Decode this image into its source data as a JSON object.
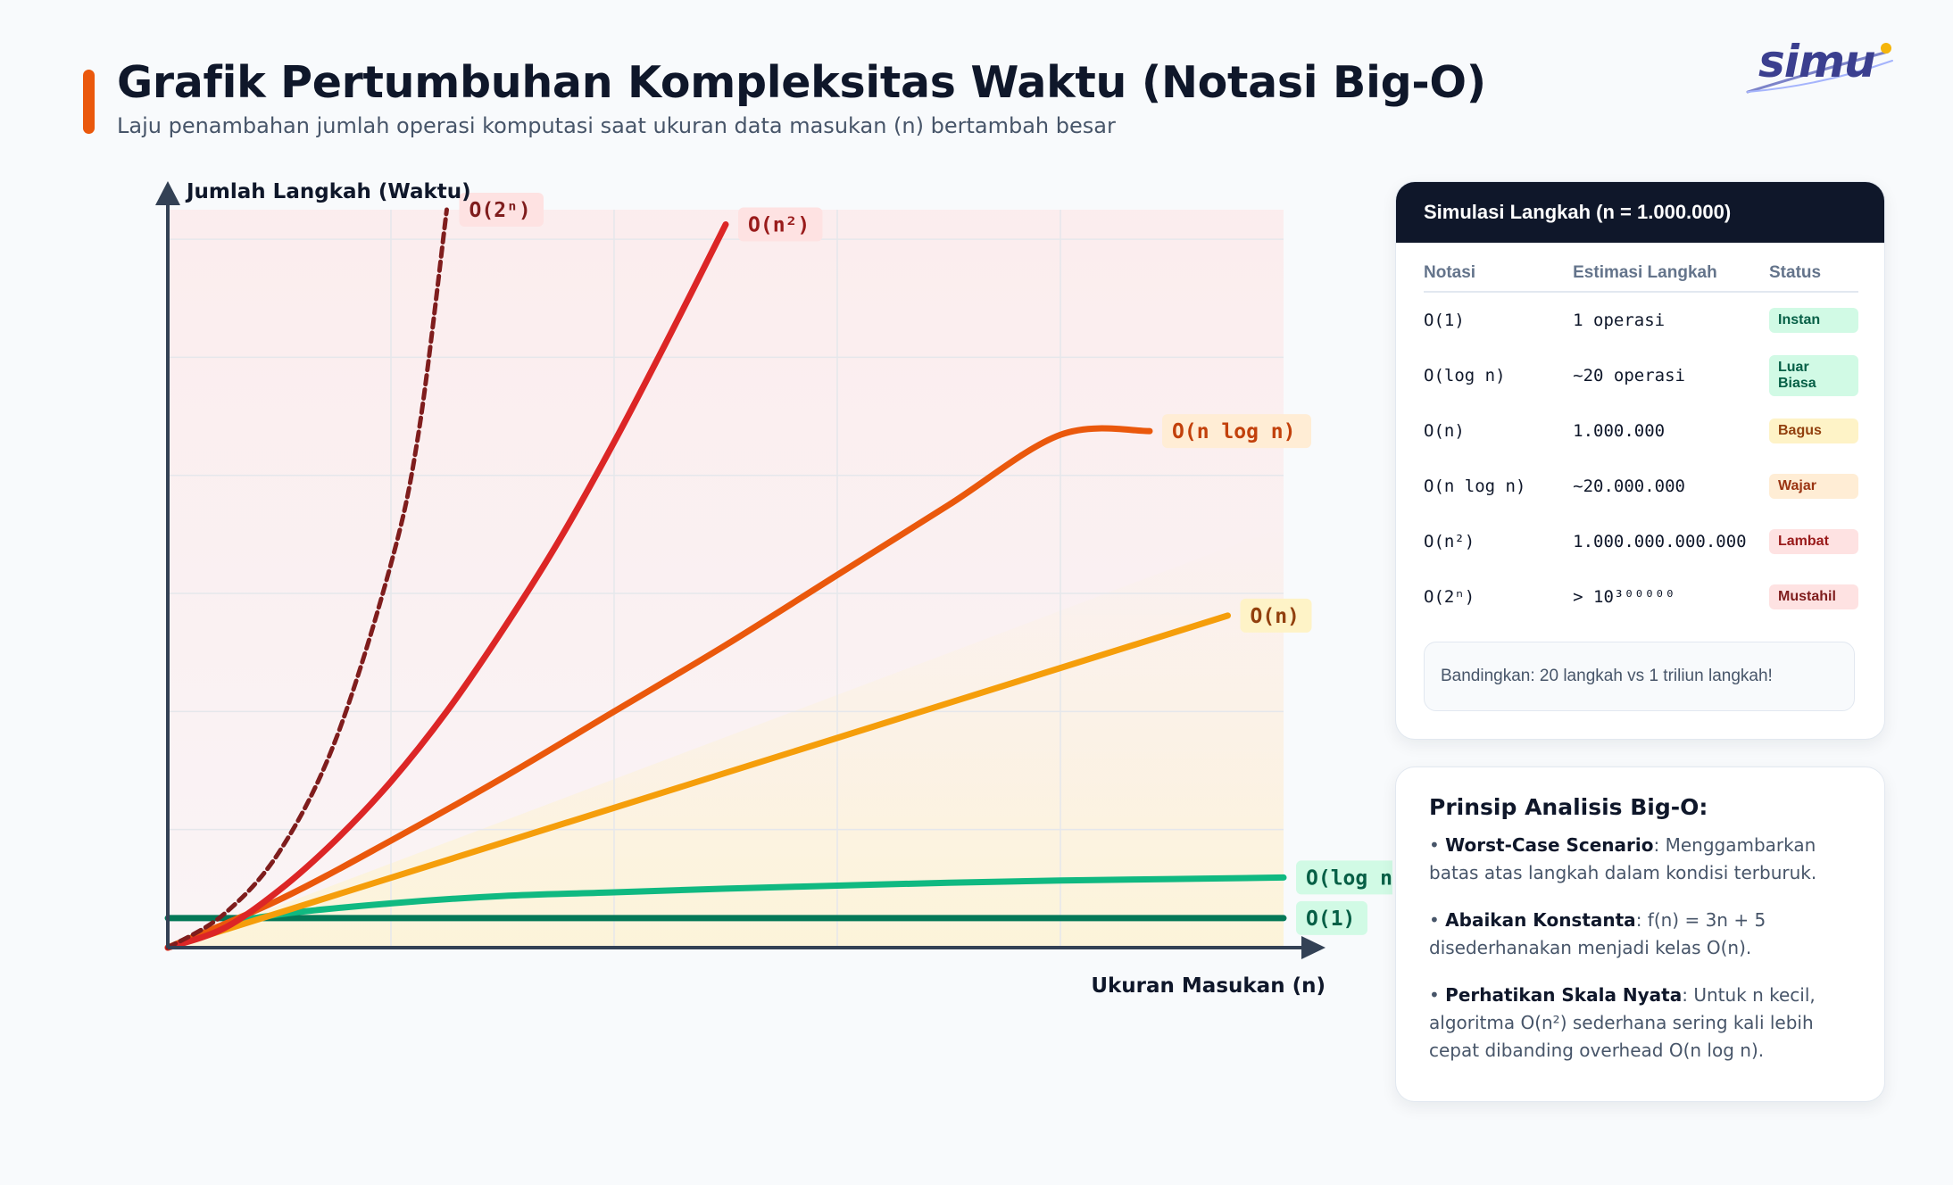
{
  "header": {
    "title": "Grafik Pertumbuhan Kompleksitas Waktu (Notasi Big-O)",
    "subtitle": "Laju penambahan jumlah operasi komputasi saat ukuran data masukan (n) bertambah besar"
  },
  "logo": {
    "text": "simu"
  },
  "colors": {
    "accent": "#ea580c",
    "o1": "#047857",
    "ologn": "#10b981",
    "on": "#f59e0b",
    "onlogn": "#ea580c",
    "on2": "#dc2626",
    "o2n": "#7f1d1d"
  },
  "chart_data": {
    "type": "line",
    "ylabel": "Jumlah Langkah (Waktu)",
    "xlabel": "Ukuran Masukan (n)",
    "grid": true,
    "legend": "inline labels at line ends",
    "x_range": [
      0,
      10
    ],
    "y_range": [
      0,
      10
    ],
    "series": [
      {
        "name": "O(1)",
        "color": "#047857",
        "dashed": false,
        "x": [
          0,
          10
        ],
        "y": [
          0.4,
          0.4
        ]
      },
      {
        "name": "O(log n)",
        "color": "#10b981",
        "dashed": false,
        "x": [
          0,
          0.5,
          1,
          2,
          3,
          4,
          5,
          6,
          7,
          8,
          9,
          10
        ],
        "y": [
          0,
          0.3,
          0.45,
          0.6,
          0.7,
          0.75,
          0.8,
          0.84,
          0.88,
          0.91,
          0.93,
          0.95
        ]
      },
      {
        "name": "O(n)",
        "color": "#f59e0b",
        "dashed": false,
        "x": [
          0,
          9.5
        ],
        "y": [
          0,
          4.5
        ]
      },
      {
        "name": "O(n log n)",
        "color": "#ea580c",
        "dashed": false,
        "x": [
          0,
          1,
          2,
          3,
          4,
          5,
          6,
          7,
          8,
          8.8
        ],
        "y": [
          0,
          0.65,
          1.45,
          2.3,
          3.2,
          4.1,
          5.05,
          6.0,
          6.95,
          7.0
        ]
      },
      {
        "name": "O(n²)",
        "color": "#dc2626",
        "dashed": false,
        "x": [
          0,
          0.5,
          1,
          1.5,
          2,
          2.5,
          3,
          3.5,
          4,
          4.5,
          5
        ],
        "y": [
          0,
          0.26,
          0.78,
          1.45,
          2.25,
          3.2,
          4.3,
          5.5,
          6.85,
          8.3,
          9.8
        ]
      },
      {
        "name": "O(2ⁿ)",
        "color": "#7f1d1d",
        "dashed": true,
        "x": [
          0,
          0.5,
          1,
          1.5,
          2,
          2.25,
          2.5
        ],
        "y": [
          0,
          0.45,
          1.3,
          2.8,
          5.2,
          7.0,
          10.0
        ]
      }
    ]
  },
  "simulation": {
    "header": "Simulasi Langkah (n = 1.000.000)",
    "columns": [
      "Notasi",
      "Estimasi Langkah",
      "Status"
    ],
    "rows": [
      {
        "notation": "O(1)",
        "steps": "1 operasi",
        "status": "Instan",
        "bg": "#d1fae5",
        "fg": "#065f46"
      },
      {
        "notation": "O(log n)",
        "steps": "~20 operasi",
        "status": "Luar Biasa",
        "bg": "#d1fae5",
        "fg": "#065f46"
      },
      {
        "notation": "O(n)",
        "steps": "1.000.000",
        "status": "Bagus",
        "bg": "#fef3c7",
        "fg": "#92400e"
      },
      {
        "notation": "O(n log n)",
        "steps": "~20.000.000",
        "status": "Wajar",
        "bg": "#ffedd5",
        "fg": "#9a3412"
      },
      {
        "notation": "O(n²)",
        "steps": "1.000.000.000.000",
        "status": "Lambat",
        "bg": "#fee2e2",
        "fg": "#991b1b"
      },
      {
        "notation": "O(2ⁿ)",
        "steps": "> 10³⁰⁰⁰⁰⁰",
        "status": "Mustahil",
        "bg": "#fee2e2",
        "fg": "#7f1d1d"
      }
    ],
    "note": "Bandingkan: 20 langkah vs 1 triliun langkah!"
  },
  "principles": {
    "title": "Prinsip Analisis Big-O:",
    "items": [
      {
        "bullet": "• ",
        "term": "Worst-Case Scenario",
        "text": ": Menggambarkan batas atas langkah dalam kondisi terburuk."
      },
      {
        "bullet": "• ",
        "term": "Abaikan Konstanta",
        "text": ": f(n) = 3n + 5 disederhanakan menjadi kelas O(n)."
      },
      {
        "bullet": "• ",
        "term": "Perhatikan Skala Nyata",
        "text": ": Untuk n kecil, algoritma O(n²) sederhana sering kali lebih cepat dibanding overhead O(n log n)."
      }
    ]
  }
}
